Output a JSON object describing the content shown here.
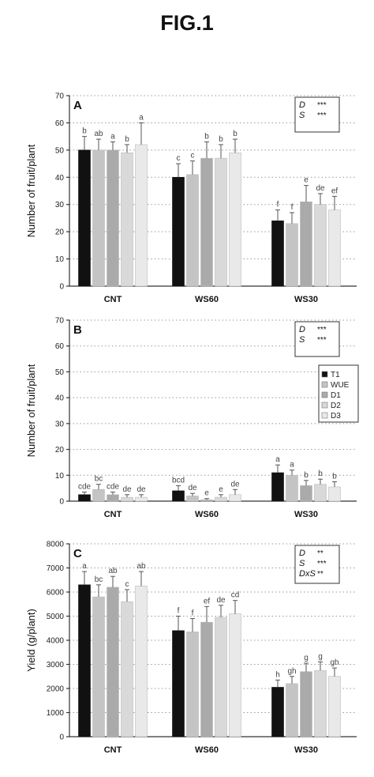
{
  "figure": {
    "title": "FIG.1"
  },
  "colors": {
    "T1": "#111111",
    "WUE": "#c4c4c4",
    "D1": "#aaaaaa",
    "D2": "#d9d9d9",
    "D3": "#e9e9e9"
  },
  "chart_data": [
    {
      "type": "bar",
      "panel": "A",
      "ylabel": "Number of fruit/plant",
      "ylim": [
        0,
        70
      ],
      "yticks": [
        "0",
        "10",
        "20",
        "30",
        "40",
        "50",
        "60",
        "70"
      ],
      "categories": [
        "CNT",
        "WS60",
        "WS30"
      ],
      "series": [
        {
          "key": "T1",
          "values": [
            50,
            40,
            24
          ],
          "errors": [
            5,
            5,
            4
          ],
          "letters": [
            "b",
            "c",
            "f"
          ]
        },
        {
          "key": "WUE",
          "values": [
            50,
            41,
            23
          ],
          "errors": [
            4,
            5,
            4
          ],
          "letters": [
            "ab",
            "c",
            "f"
          ]
        },
        {
          "key": "D1",
          "values": [
            50,
            47,
            31
          ],
          "errors": [
            3,
            6,
            6
          ],
          "letters": [
            "a",
            "b",
            "e"
          ]
        },
        {
          "key": "D2",
          "values": [
            49,
            47,
            30
          ],
          "errors": [
            3,
            5,
            4
          ],
          "letters": [
            "b",
            "b",
            "de"
          ]
        },
        {
          "key": "D3",
          "values": [
            52,
            49,
            28
          ],
          "errors": [
            8,
            5,
            5
          ],
          "letters": [
            "a",
            "b",
            "ef"
          ]
        }
      ],
      "stats": [
        {
          "key": "D",
          "value": "***"
        },
        {
          "key": "S",
          "value": "***"
        }
      ]
    },
    {
      "type": "bar",
      "panel": "B",
      "ylabel": "Number of fruit/plant",
      "ylim": [
        0,
        70
      ],
      "yticks": [
        "0",
        "10",
        "20",
        "30",
        "40",
        "50",
        "60",
        "70"
      ],
      "categories": [
        "CNT",
        "WS60",
        "WS30"
      ],
      "series": [
        {
          "key": "T1",
          "values": [
            2.5,
            4,
            11
          ],
          "errors": [
            1,
            2,
            3
          ],
          "letters": [
            "cde",
            "bcd",
            "a"
          ]
        },
        {
          "key": "WUE",
          "values": [
            4.5,
            2,
            10
          ],
          "errors": [
            2,
            1,
            2
          ],
          "letters": [
            "bc",
            "de",
            "a"
          ]
        },
        {
          "key": "D1",
          "values": [
            2.5,
            0.5,
            6
          ],
          "errors": [
            1,
            0.5,
            2
          ],
          "letters": [
            "cde",
            "e",
            "b"
          ]
        },
        {
          "key": "D2",
          "values": [
            1.5,
            1.5,
            6.5
          ],
          "errors": [
            1,
            1,
            2
          ],
          "letters": [
            "de",
            "e",
            "b"
          ]
        },
        {
          "key": "D3",
          "values": [
            1.5,
            2.5,
            5.5
          ],
          "errors": [
            1,
            2,
            2
          ],
          "letters": [
            "de",
            "de",
            "b"
          ]
        }
      ],
      "stats": [
        {
          "key": "D",
          "value": "***"
        },
        {
          "key": "S",
          "value": "***"
        }
      ],
      "legend": {
        "placement": "right",
        "entries": [
          {
            "key": "T1",
            "label": "T1"
          },
          {
            "key": "WUE",
            "label": "WUE"
          },
          {
            "key": "D1",
            "label": "D1"
          },
          {
            "key": "D2",
            "label": "D2"
          },
          {
            "key": "D3",
            "label": "D3"
          }
        ]
      }
    },
    {
      "type": "bar",
      "panel": "C",
      "ylabel": "Yield (g/plant)",
      "ylim": [
        0,
        8000
      ],
      "yticks": [
        "0",
        "1000",
        "2000",
        "3000",
        "4000",
        "5000",
        "6000",
        "7000",
        "8000"
      ],
      "categories": [
        "CNT",
        "WS60",
        "WS30"
      ],
      "series": [
        {
          "key": "T1",
          "values": [
            6300,
            4400,
            2050
          ],
          "errors": [
            550,
            600,
            300
          ],
          "letters": [
            "a",
            "f",
            "h"
          ]
        },
        {
          "key": "WUE",
          "values": [
            5800,
            4350,
            2200
          ],
          "errors": [
            500,
            550,
            300
          ],
          "letters": [
            "bc",
            "f",
            "gh"
          ]
        },
        {
          "key": "D1",
          "values": [
            6200,
            4750,
            2700
          ],
          "errors": [
            450,
            650,
            350
          ],
          "letters": [
            "ab",
            "ef",
            "g"
          ]
        },
        {
          "key": "D2",
          "values": [
            5600,
            4950,
            2750
          ],
          "errors": [
            500,
            500,
            350
          ],
          "letters": [
            "c",
            "de",
            "g"
          ]
        },
        {
          "key": "D3",
          "values": [
            6250,
            5100,
            2500
          ],
          "errors": [
            600,
            550,
            350
          ],
          "letters": [
            "ab",
            "cd",
            "gh"
          ]
        }
      ],
      "stats": [
        {
          "key": "D",
          "value": "**"
        },
        {
          "key": "S",
          "value": "***"
        },
        {
          "key": "DxS",
          "value": "**"
        }
      ]
    }
  ]
}
